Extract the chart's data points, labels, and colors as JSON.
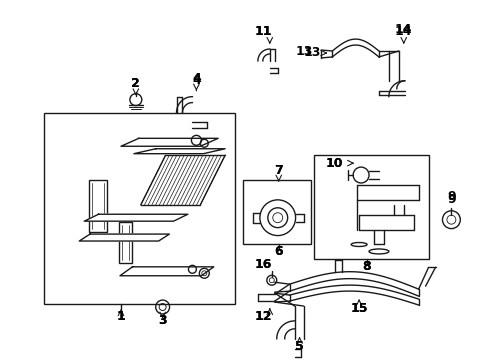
{
  "bg_color": "#ffffff",
  "line_color": "#1a1a1a",
  "label_color": "#000000",
  "lw": 1.0,
  "figsize": [
    4.89,
    3.6
  ],
  "dpi": 100
}
